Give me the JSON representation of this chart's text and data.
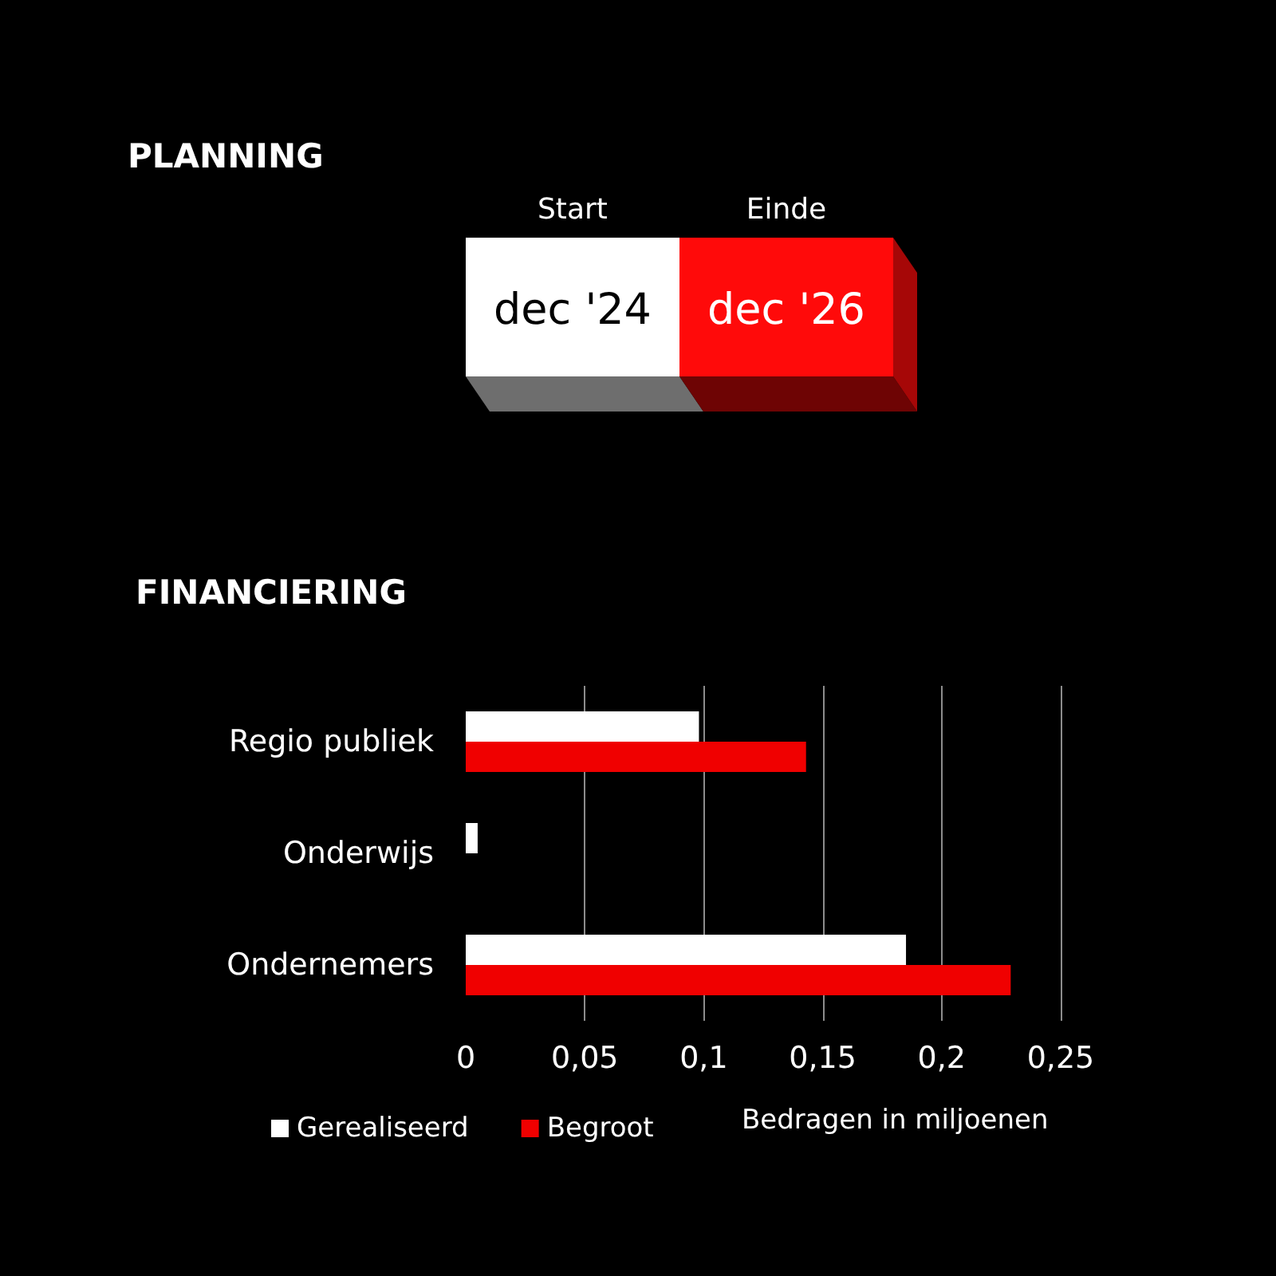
{
  "chart_data": [
    {
      "type": "other",
      "title": "PLANNING",
      "categories": [
        "Start",
        "Einde"
      ],
      "value_labels": [
        "dec '24",
        "dec '26"
      ],
      "colors": [
        "#ffffff",
        "#ff0a0a"
      ]
    },
    {
      "type": "bar",
      "orientation": "horizontal",
      "title": "FINANCIERING",
      "xlabel": "Bedragen in miljoenen",
      "categories": [
        "Regio publiek",
        "Onderwijs",
        "Ondernemers"
      ],
      "series": [
        {
          "name": "Gerealiseerd",
          "color": "#ffffff",
          "values": [
            0.098,
            0.005,
            0.185
          ]
        },
        {
          "name": "Begroot",
          "color": "#f00000",
          "values": [
            0.143,
            null,
            0.229
          ]
        }
      ],
      "xlim": [
        0,
        0.25
      ],
      "xticks": [
        0,
        {
          "value": 0.05,
          "label": "0,05"
        },
        {
          "value": 0.1,
          "label": "0,1"
        },
        {
          "value": 0.15,
          "label": "0,15"
        },
        {
          "value": 0.2,
          "label": "0,2"
        },
        {
          "value": 0.25,
          "label": "0,25"
        }
      ],
      "grid": "x",
      "legend": "bottom left"
    }
  ]
}
